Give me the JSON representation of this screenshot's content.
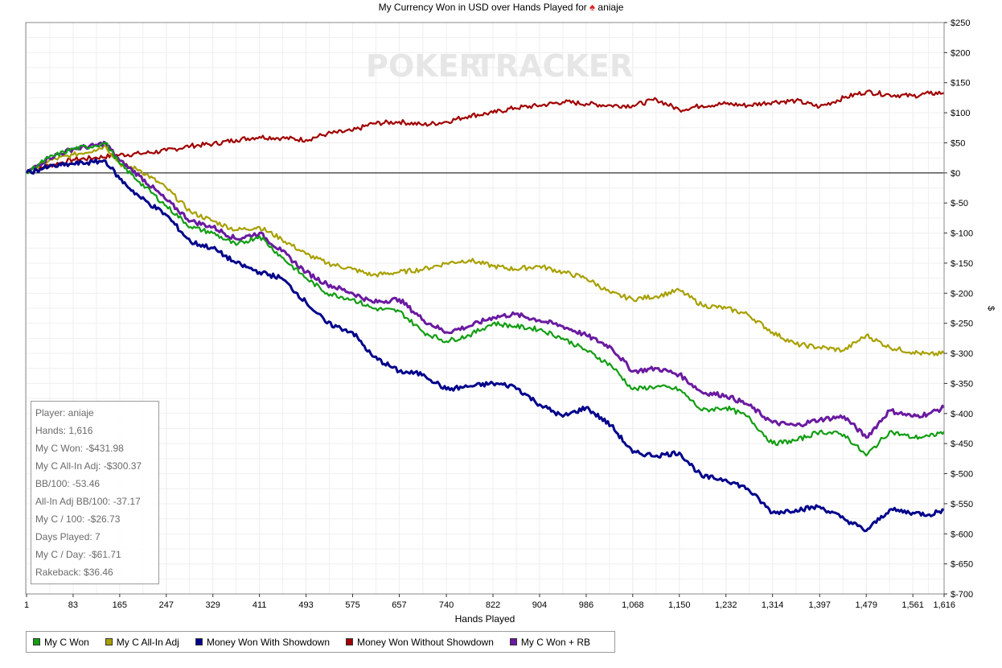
{
  "chart_data": {
    "type": "line",
    "title": "My Currency Won in USD over Hands Played for",
    "player_name": "aniaje",
    "watermark": {
      "left": "POKER",
      "right": "TRACKER"
    },
    "xlabel": "Hands Played",
    "ylabel": "$",
    "xlim": [
      1,
      1616
    ],
    "ylim": [
      -700,
      250
    ],
    "x_ticks": [
      1,
      83,
      165,
      247,
      329,
      411,
      493,
      575,
      657,
      740,
      822,
      904,
      986,
      1068,
      1150,
      1232,
      1314,
      1397,
      1479,
      1561,
      1616
    ],
    "x_tick_labels": [
      "1",
      "83",
      "165",
      "247",
      "329",
      "411",
      "493",
      "575",
      "657",
      "740",
      "822",
      "904",
      "986",
      "1,068",
      "1,150",
      "1,232",
      "1,314",
      "1,397",
      "1,479",
      "1,561",
      "1,616"
    ],
    "y_ticks": [
      250,
      200,
      150,
      100,
      50,
      0,
      -50,
      -100,
      -150,
      -200,
      -250,
      -300,
      -350,
      -400,
      -450,
      -500,
      -550,
      -600,
      -650,
      -700
    ],
    "y_tick_labels": [
      "$250",
      "$200",
      "$150",
      "$100",
      "$50",
      "$0",
      "$-50",
      "$-100",
      "$-150",
      "$-200",
      "$-250",
      "$-300",
      "$-350",
      "$-400",
      "$-450",
      "$-500",
      "$-550",
      "$-600",
      "$-650",
      "$-700"
    ],
    "grid": true,
    "legend_position": "bottom",
    "series": [
      {
        "name": "Money Won Without Showdown",
        "color": "#a00000",
        "x": [
          1,
          40,
          83,
          120,
          165,
          200,
          247,
          290,
          329,
          370,
          411,
          450,
          493,
          530,
          575,
          610,
          657,
          700,
          740,
          780,
          822,
          860,
          904,
          945,
          986,
          1030,
          1068,
          1110,
          1150,
          1190,
          1232,
          1270,
          1314,
          1355,
          1397,
          1440,
          1479,
          1520,
          1561,
          1590,
          1616
        ],
        "y": [
          0,
          12,
          22,
          25,
          30,
          32,
          37,
          45,
          48,
          55,
          60,
          58,
          55,
          65,
          70,
          82,
          85,
          80,
          85,
          95,
          100,
          108,
          112,
          118,
          115,
          112,
          112,
          122,
          105,
          112,
          115,
          112,
          118,
          120,
          110,
          125,
          135,
          130,
          128,
          132,
          133
        ]
      },
      {
        "name": "My C All-In Adj",
        "color": "#a8a000",
        "x": [
          1,
          40,
          83,
          120,
          140,
          165,
          200,
          247,
          290,
          329,
          370,
          411,
          450,
          493,
          530,
          575,
          610,
          657,
          700,
          740,
          780,
          822,
          860,
          904,
          945,
          986,
          1030,
          1068,
          1110,
          1150,
          1190,
          1232,
          1270,
          1314,
          1355,
          1397,
          1440,
          1479,
          1520,
          1561,
          1590,
          1616
        ],
        "y": [
          0,
          20,
          30,
          38,
          45,
          15,
          5,
          -25,
          -65,
          -80,
          -95,
          -90,
          -110,
          -135,
          -150,
          -160,
          -170,
          -165,
          -160,
          -150,
          -145,
          -155,
          -160,
          -155,
          -165,
          -175,
          -200,
          -210,
          -205,
          -195,
          -220,
          -225,
          -235,
          -265,
          -285,
          -290,
          -295,
          -270,
          -290,
          -298,
          -302,
          -300
        ]
      },
      {
        "name": "My C Won + RB",
        "color": "#6a1aa0",
        "x": [
          1,
          40,
          83,
          120,
          140,
          165,
          200,
          247,
          290,
          329,
          370,
          411,
          450,
          493,
          530,
          575,
          610,
          657,
          700,
          740,
          780,
          822,
          860,
          904,
          945,
          986,
          1030,
          1068,
          1110,
          1150,
          1190,
          1232,
          1270,
          1314,
          1355,
          1397,
          1440,
          1479,
          1520,
          1561,
          1590,
          1616
        ],
        "y": [
          0,
          25,
          40,
          45,
          50,
          20,
          -5,
          -45,
          -80,
          -90,
          -110,
          -100,
          -130,
          -165,
          -185,
          -200,
          -215,
          -210,
          -245,
          -265,
          -255,
          -240,
          -235,
          -245,
          -255,
          -270,
          -290,
          -330,
          -325,
          -335,
          -365,
          -370,
          -385,
          -415,
          -420,
          -410,
          -405,
          -440,
          -395,
          -405,
          -400,
          -390
        ]
      },
      {
        "name": "My C Won",
        "color": "#129d12",
        "x": [
          1,
          40,
          83,
          120,
          140,
          165,
          200,
          247,
          290,
          329,
          370,
          411,
          450,
          493,
          530,
          575,
          610,
          657,
          700,
          740,
          780,
          822,
          860,
          904,
          945,
          986,
          1030,
          1068,
          1110,
          1150,
          1190,
          1232,
          1270,
          1314,
          1355,
          1397,
          1440,
          1479,
          1520,
          1561,
          1590,
          1616
        ],
        "y": [
          0,
          25,
          40,
          45,
          50,
          15,
          -15,
          -55,
          -90,
          -100,
          -120,
          -105,
          -140,
          -175,
          -200,
          -210,
          -225,
          -230,
          -265,
          -280,
          -270,
          -250,
          -255,
          -260,
          -275,
          -295,
          -320,
          -360,
          -355,
          -360,
          -395,
          -390,
          -405,
          -450,
          -445,
          -430,
          -435,
          -470,
          -430,
          -440,
          -438,
          -430
        ]
      },
      {
        "name": "Money Won With Showdown",
        "color": "#00008b",
        "x": [
          1,
          40,
          83,
          120,
          140,
          165,
          200,
          247,
          290,
          329,
          370,
          411,
          450,
          493,
          530,
          575,
          610,
          657,
          700,
          740,
          780,
          822,
          860,
          904,
          945,
          986,
          1030,
          1068,
          1110,
          1150,
          1190,
          1232,
          1270,
          1314,
          1355,
          1397,
          1440,
          1479,
          1520,
          1561,
          1590,
          1616
        ],
        "y": [
          0,
          10,
          15,
          18,
          20,
          -10,
          -40,
          -70,
          -115,
          -125,
          -150,
          -165,
          -175,
          -215,
          -250,
          -265,
          -305,
          -330,
          -335,
          -360,
          -355,
          -350,
          -355,
          -385,
          -405,
          -390,
          -420,
          -465,
          -470,
          -465,
          -505,
          -510,
          -525,
          -565,
          -560,
          -555,
          -575,
          -595,
          -560,
          -565,
          -568,
          -560
        ]
      }
    ],
    "legend_entries": [
      {
        "label": "My C Won",
        "color": "#129d12"
      },
      {
        "label": "My C All-In Adj",
        "color": "#a8a000"
      },
      {
        "label": "Money Won With Showdown",
        "color": "#00008b"
      },
      {
        "label": "Money Won Without Showdown",
        "color": "#a00000"
      },
      {
        "label": "My C Won + RB",
        "color": "#6a1aa0"
      }
    ]
  },
  "info_box": [
    "Player: aniaje",
    "Hands: 1,616",
    "My C Won: -$431.98",
    "My C All-In Adj: -$300.37",
    "BB/100: -53.46",
    "All-In Adj BB/100: -37.17",
    "My C / 100: -$26.73",
    "Days Played: 7",
    "My C / Day: -$61.71",
    "Rakeback: $36.46"
  ],
  "colors": {
    "title_suit": "#d22222",
    "watermark": "#e6e6e6"
  },
  "icons": {
    "title_suit": "spade-icon"
  }
}
